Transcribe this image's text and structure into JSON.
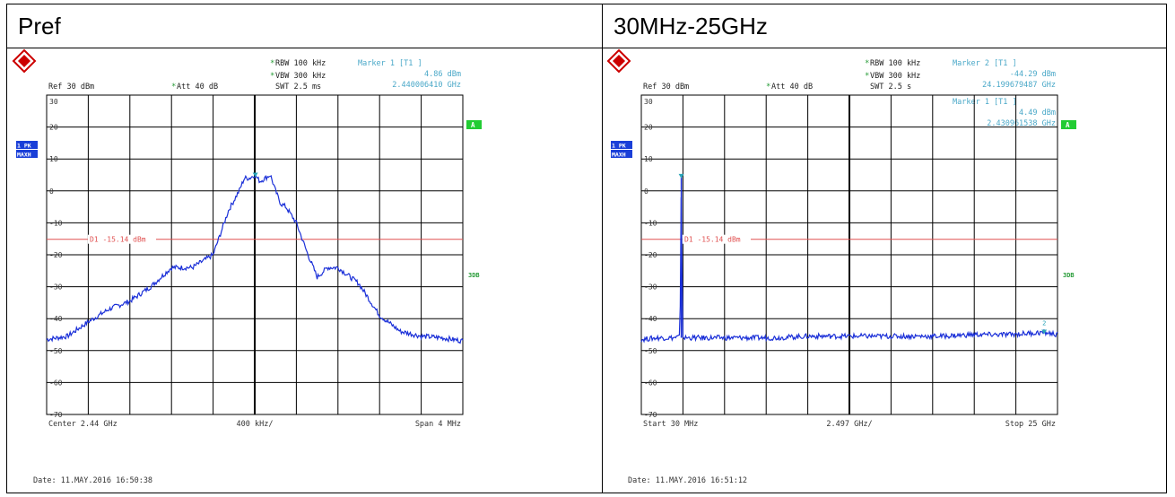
{
  "panels": [
    {
      "title": "Pref",
      "rbw": "RBW 100 kHz",
      "vbw": "VBW 300 kHz",
      "swt": "SWT 2.5 ms",
      "ref": "Ref  30 dBm",
      "att": "Att  40 dB",
      "markers_text": [
        {
          "label": "Marker 1 [T1 ]",
          "level": "4.86 dBm",
          "freq": "2.440006410 GHz"
        }
      ],
      "trace_label_1": "1 PK",
      "trace_label_2": "MAXH",
      "badge_a": "A",
      "badge_3db": "3DB",
      "d1_label": "D1 -15.14 dBm",
      "yticks": [
        "30",
        "20",
        "10",
        "0",
        "-10",
        "-20",
        "-30",
        "-40",
        "-50",
        "-60",
        "-70"
      ],
      "x_left": "Center  2.44 GHz",
      "x_mid": "400 kHz/",
      "x_right": "Span  4 MHz",
      "date": "Date: 11.MAY.2016  16:50:38",
      "chart_data": {
        "type": "line",
        "xlabel": "",
        "ylabel": "",
        "ylim": [
          -70,
          30
        ],
        "x_unit_note": "GHz",
        "xlim": [
          2.438,
          2.442
        ],
        "d1_level": -15.14,
        "markers": [
          {
            "id": "1",
            "x": 2.440006,
            "y": 4.86
          }
        ],
        "series": [
          {
            "x": [
              2.438,
              2.4382,
              2.4384,
              2.4386,
              2.4388,
              2.439,
              2.4392,
              2.4394,
              2.4396,
              2.43975,
              2.4398,
              2.43985,
              2.4399,
              2.43995,
              2.44,
              2.44005,
              2.4401,
              2.44015,
              2.4402,
              2.44025,
              2.4403,
              2.4404,
              2.4405,
              2.4406,
              2.4407,
              2.4408,
              2.441,
              2.4412,
              2.4414,
              2.4416,
              2.4418,
              2.442
            ],
            "y": [
              -46.5,
              -45.5,
              -41,
              -37,
              -34.5,
              -30,
              -24,
              -24,
              -20,
              -6,
              -3,
              0,
              4,
              4,
              5,
              3,
              4,
              5,
              0,
              -4,
              -5,
              -10,
              -19,
              -27,
              -24,
              -24,
              -29,
              -39,
              -44,
              -45.5,
              -46,
              -47
            ]
          }
        ]
      }
    },
    {
      "title": "30MHz-25GHz",
      "rbw": "RBW 100 kHz",
      "vbw": "VBW 300 kHz",
      "swt": "SWT 2.5 s",
      "ref": "Ref  30 dBm",
      "att": "Att  40 dB",
      "markers_text": [
        {
          "label": "Marker 2 [T1 ]",
          "level": "-44.29 dBm",
          "freq": "24.199679487 GHz"
        },
        {
          "label": "Marker 1 [T1 ]",
          "level": "4.49 dBm",
          "freq": "2.430961538 GHz"
        }
      ],
      "trace_label_1": "1 PK",
      "trace_label_2": "MAXH",
      "badge_a": "A",
      "badge_3db": "3DB",
      "d1_label": "D1 -15.14 dBm",
      "yticks": [
        "30",
        "20",
        "10",
        "0",
        "-10",
        "-20",
        "-30",
        "-40",
        "-50",
        "-60",
        "-70"
      ],
      "x_left": "Start  30 MHz",
      "x_mid": "2.497 GHz/",
      "x_right": "Stop  25 GHz",
      "date": "Date: 11.MAY.2016  16:51:12",
      "chart_data": {
        "type": "line",
        "xlabel": "",
        "ylabel": "",
        "ylim": [
          -70,
          30
        ],
        "x_unit_note": "GHz",
        "xlim": [
          0.03,
          25
        ],
        "d1_level": -15.14,
        "markers": [
          {
            "id": "1",
            "x": 2.43,
            "y": 4.49
          },
          {
            "id": "2",
            "x": 24.2,
            "y": -44.29
          }
        ],
        "series": [
          {
            "x": [
              0.03,
              1.0,
              2.0,
              2.35,
              2.43,
              2.5,
              2.6,
              4,
              6,
              8,
              10,
              12,
              14,
              16,
              18,
              20,
              22,
              24.2,
              25
            ],
            "y": [
              -46.5,
              -46,
              -46,
              -45.5,
              4.5,
              -45.5,
              -46,
              -46,
              -46,
              -46,
              -45.5,
              -45.5,
              -45.5,
              -45.5,
              -45.5,
              -45,
              -45,
              -44.3,
              -45
            ]
          }
        ]
      }
    }
  ]
}
